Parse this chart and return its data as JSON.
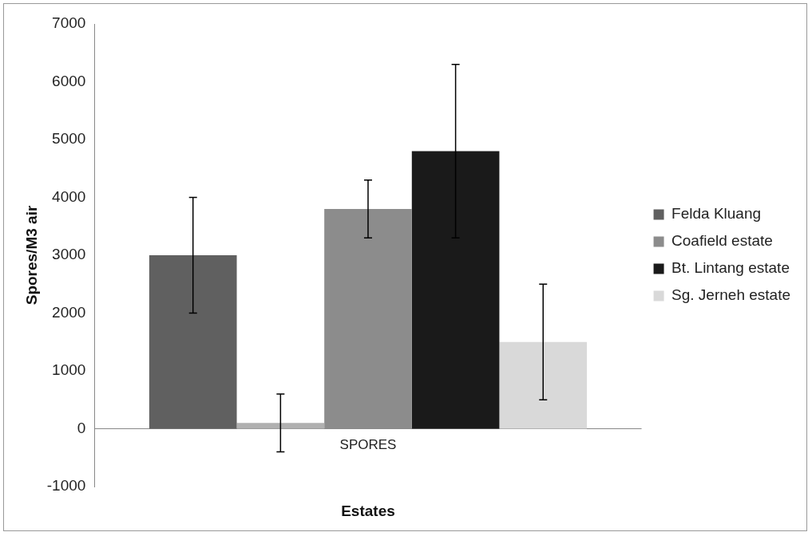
{
  "chart_data": {
    "type": "bar",
    "xlabel": "Estates",
    "ylabel": "Spores/M3 air",
    "categories": [
      "SPORES"
    ],
    "series": [
      {
        "name": "Felda Kluang",
        "color": "#606060",
        "values": [
          3000
        ],
        "errors": [
          1000
        ]
      },
      {
        "color": "#b0b0b0",
        "values": [
          100
        ],
        "errors": [
          500
        ]
      },
      {
        "name": "Coafield estate",
        "color": "#8c8c8c",
        "values": [
          3800
        ],
        "errors": [
          500
        ]
      },
      {
        "name": "Bt. Lintang estate",
        "color": "#1a1a1a",
        "values": [
          4800
        ],
        "errors": [
          1500
        ]
      },
      {
        "name": "Sg. Jerneh estate",
        "color": "#d9d9d9",
        "values": [
          1500
        ],
        "errors": [
          1000
        ]
      }
    ],
    "ylim": [
      -1000,
      7000
    ],
    "yticks": [
      -1000,
      0,
      1000,
      2000,
      3000,
      4000,
      5000,
      6000,
      7000
    ],
    "ref_lines": [
      {
        "axis": "y",
        "value": 0,
        "color": "#888888"
      }
    ],
    "grid": false,
    "legend": "right"
  }
}
